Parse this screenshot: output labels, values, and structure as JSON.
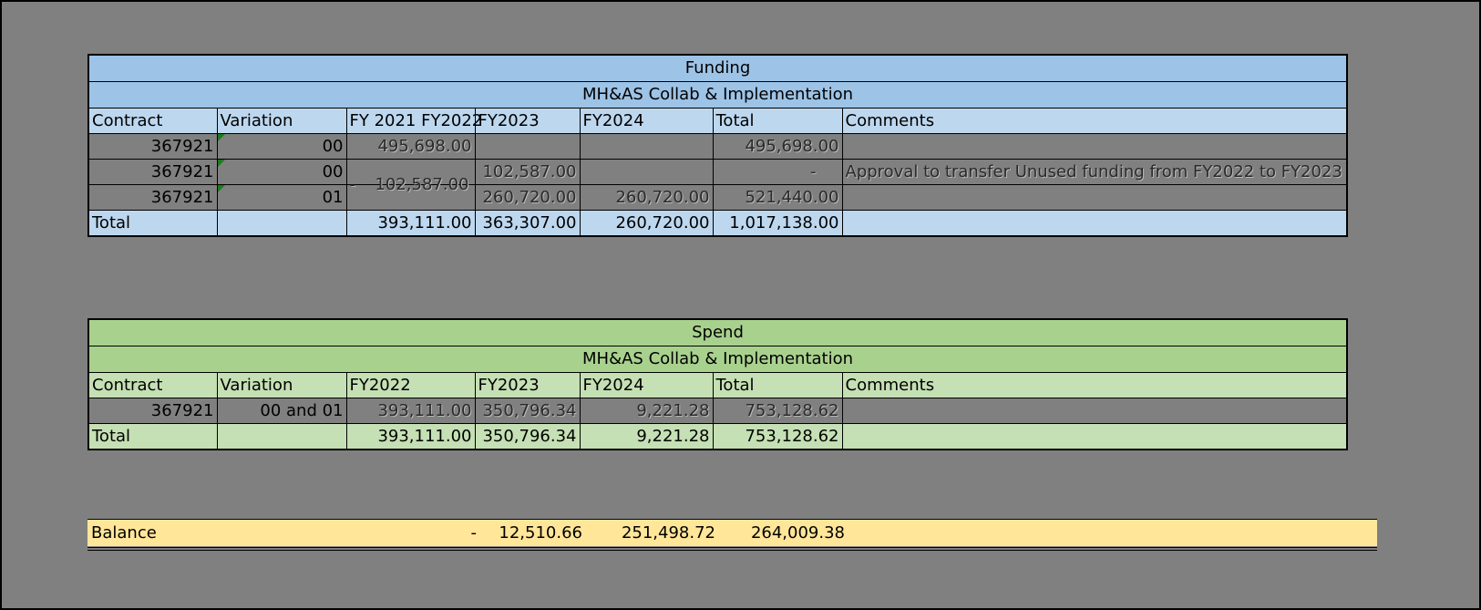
{
  "funding": {
    "title": "Funding",
    "subtitle": "MH&AS Collab & Implementation",
    "headers": [
      "Contract",
      "Variation",
      "FY 2021 FY2022",
      "FY2023",
      "FY2024",
      "Total",
      "Comments"
    ],
    "rows": [
      {
        "contract": "367921",
        "variation": "00",
        "fy2022_prefix": "",
        "fy2022": "495,698.00",
        "fy2023": "",
        "fy2024": "",
        "total": "495,698.00",
        "comments": ""
      },
      {
        "contract": "367921",
        "variation": "00",
        "fy2022_prefix": "-",
        "fy2022": "102,587.00",
        "fy2023": "102,587.00",
        "fy2024": "",
        "total": "-",
        "comments": "Approval to transfer Unused funding from FY2022 to FY2023"
      },
      {
        "contract": "367921",
        "variation": "01",
        "fy2022_prefix": "",
        "fy2022": "",
        "fy2023": "260,720.00",
        "fy2024": "260,720.00",
        "total": "521,440.00",
        "comments": ""
      }
    ],
    "total": {
      "label": "Total",
      "fy2022": "393,111.00",
      "fy2023": "363,307.00",
      "fy2024": "260,720.00",
      "total": "1,017,138.00"
    }
  },
  "spend": {
    "title": "Spend",
    "subtitle": "MH&AS Collab & Implementation",
    "headers": [
      "Contract",
      "Variation",
      "FY2022",
      "FY2023",
      "FY2024",
      "Total",
      "Comments"
    ],
    "rows": [
      {
        "contract": "367921",
        "variation": "00 and 01",
        "fy2022": "393,111.00",
        "fy2023": "350,796.34",
        "fy2024": "9,221.28",
        "total": "753,128.62",
        "comments": ""
      }
    ],
    "total": {
      "label": "Total",
      "fy2022": "393,111.00",
      "fy2023": "350,796.34",
      "fy2024": "9,221.28",
      "total": "753,128.62"
    }
  },
  "balance": {
    "label": "Balance",
    "fy2022": "-",
    "fy2023": "12,510.66",
    "fy2024": "251,498.72",
    "total": "264,009.38"
  },
  "colors": {
    "background": "#808080",
    "funding_header": "#9dc3e6",
    "funding_light": "#bdd7ee",
    "spend_header": "#a9d18e",
    "spend_light": "#c5e0b4",
    "balance": "#ffe699",
    "comment_marker": "#1f7a1f"
  }
}
